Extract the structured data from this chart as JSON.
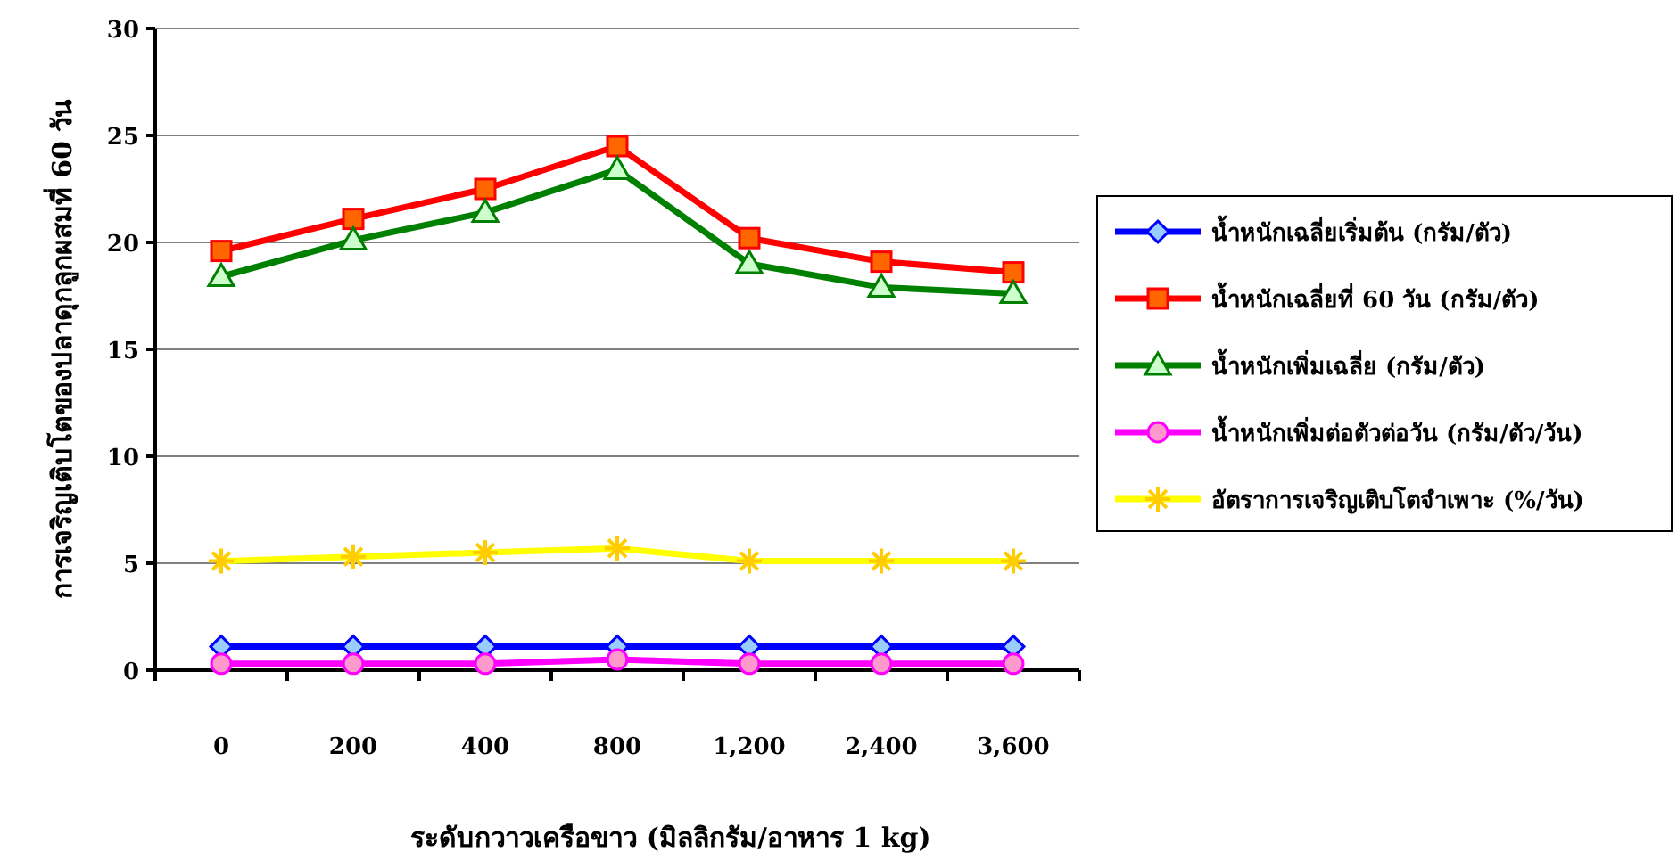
{
  "chart_data": {
    "type": "line",
    "xlabel": "ระดับกวาวเครือขาว (มิลลิกรัม/อาหาร 1 kg)",
    "ylabel": "การเจริญเติบโตของปลาดุกลูกผสมที่ 60 วัน",
    "categories": [
      "0",
      "200",
      "400",
      "800",
      "1,200",
      "2,400",
      "3,600"
    ],
    "ylim": [
      0,
      30
    ],
    "yticks": [
      0,
      5,
      10,
      15,
      20,
      25,
      30
    ],
    "grid": "y",
    "legend": "right",
    "series": [
      {
        "name": "น้ำหนักเฉลี่ยเริ่มต้น (กรัม/ตัว)",
        "color": "#0000ff",
        "marker": "diamond",
        "values": [
          1.1,
          1.1,
          1.1,
          1.1,
          1.1,
          1.1,
          1.1
        ]
      },
      {
        "name": "น้ำหนักเฉลี่ยที่ 60 วัน (กรัม/ตัว)",
        "color": "#ff0000",
        "marker": "square",
        "values": [
          19.6,
          21.1,
          22.5,
          24.5,
          20.2,
          19.1,
          18.6
        ]
      },
      {
        "name": "น้ำหนักเพิ่มเฉลี่ย (กรัม/ตัว)",
        "color": "#008000",
        "marker": "triangle",
        "values": [
          18.4,
          20.1,
          21.4,
          23.4,
          19.0,
          17.9,
          17.6
        ]
      },
      {
        "name": "น้ำหนักเพิ่มต่อตัวต่อวัน (กรัม/ตัว/วัน)",
        "color": "#ff00ff",
        "marker": "circle",
        "values": [
          0.3,
          0.3,
          0.3,
          0.5,
          0.3,
          0.3,
          0.3
        ]
      },
      {
        "name": "อัตราการเจริญเติบโตจำเพาะ (%/วัน)",
        "color": "#ffff00",
        "marker": "cross",
        "values": [
          5.1,
          5.3,
          5.5,
          5.7,
          5.1,
          5.1,
          5.1
        ]
      }
    ]
  }
}
